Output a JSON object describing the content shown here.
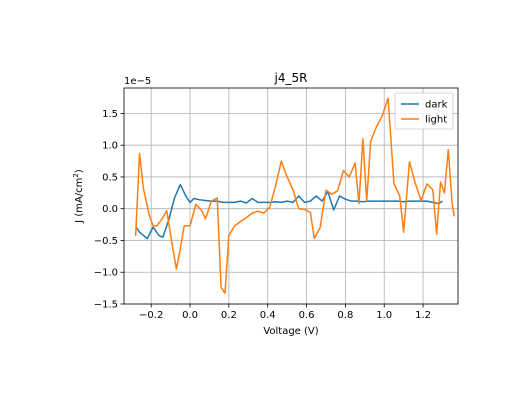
{
  "chart_data": {
    "type": "line",
    "title": "j4_5R",
    "xlabel": "Voltage (V)",
    "ylabel_main": "J (mA/cm",
    "ylabel_sup": "2",
    "ylabel_close": ")",
    "offset_text": "1e−5",
    "xlim": [
      -0.34,
      1.38
    ],
    "ylim": [
      -1.5,
      1.9
    ],
    "y_scale": "1e-5",
    "xticks": [
      -0.2,
      0.0,
      0.2,
      0.4,
      0.6,
      0.8,
      1.0,
      1.2
    ],
    "xtick_labels": [
      "−0.2",
      "0.0",
      "0.2",
      "0.4",
      "0.6",
      "0.8",
      "1.0",
      "1.2"
    ],
    "yticks": [
      -1.5,
      -1.0,
      -0.5,
      0.0,
      0.5,
      1.0,
      1.5
    ],
    "ytick_labels": [
      "−1.5",
      "−1.0",
      "−0.5",
      "0.0",
      "0.5",
      "1.0",
      "1.5"
    ],
    "grid": true,
    "legend_position": "top-right",
    "series": [
      {
        "name": "dark",
        "color": "#1f77b4",
        "points": [
          [
            -0.28,
            -0.28
          ],
          [
            -0.26,
            -0.37
          ],
          [
            -0.22,
            -0.47
          ],
          [
            -0.19,
            -0.29
          ],
          [
            -0.16,
            -0.42
          ],
          [
            -0.14,
            -0.45
          ],
          [
            -0.11,
            -0.18
          ],
          [
            -0.08,
            0.17
          ],
          [
            -0.05,
            0.38
          ],
          [
            -0.02,
            0.19
          ],
          [
            0.0,
            0.1
          ],
          [
            0.02,
            0.16
          ],
          [
            0.05,
            0.14
          ],
          [
            0.08,
            0.13
          ],
          [
            0.11,
            0.12
          ],
          [
            0.14,
            0.12
          ],
          [
            0.17,
            0.1
          ],
          [
            0.2,
            0.1
          ],
          [
            0.23,
            0.1
          ],
          [
            0.26,
            0.12
          ],
          [
            0.29,
            0.09
          ],
          [
            0.32,
            0.16
          ],
          [
            0.35,
            0.1
          ],
          [
            0.38,
            0.1
          ],
          [
            0.41,
            0.1
          ],
          [
            0.44,
            0.11
          ],
          [
            0.47,
            0.1
          ],
          [
            0.5,
            0.12
          ],
          [
            0.53,
            0.1
          ],
          [
            0.56,
            0.2
          ],
          [
            0.59,
            0.1
          ],
          [
            0.62,
            0.12
          ],
          [
            0.65,
            0.2
          ],
          [
            0.68,
            0.12
          ],
          [
            0.71,
            0.27
          ],
          [
            0.74,
            -0.02
          ],
          [
            0.77,
            0.2
          ],
          [
            0.8,
            0.15
          ],
          [
            0.83,
            0.12
          ],
          [
            0.86,
            0.12
          ],
          [
            0.89,
            0.11
          ],
          [
            0.92,
            0.12
          ],
          [
            0.95,
            0.12
          ],
          [
            0.98,
            0.12
          ],
          [
            1.01,
            0.12
          ],
          [
            1.04,
            0.12
          ],
          [
            1.07,
            0.12
          ],
          [
            1.1,
            0.11
          ],
          [
            1.13,
            0.12
          ],
          [
            1.16,
            0.12
          ],
          [
            1.19,
            0.12
          ],
          [
            1.22,
            0.12
          ],
          [
            1.25,
            0.1
          ],
          [
            1.28,
            0.08
          ],
          [
            1.3,
            0.12
          ]
        ]
      },
      {
        "name": "light",
        "color": "#ff7f0e",
        "points": [
          [
            -0.28,
            -0.43
          ],
          [
            -0.26,
            0.87
          ],
          [
            -0.24,
            0.32
          ],
          [
            -0.21,
            -0.1
          ],
          [
            -0.19,
            -0.27
          ],
          [
            -0.17,
            -0.27
          ],
          [
            -0.14,
            -0.14
          ],
          [
            -0.12,
            -0.03
          ],
          [
            -0.09,
            -0.6
          ],
          [
            -0.07,
            -0.95
          ],
          [
            -0.05,
            -0.63
          ],
          [
            -0.03,
            -0.27
          ],
          [
            0.0,
            -0.27
          ],
          [
            0.03,
            0.07
          ],
          [
            0.06,
            -0.03
          ],
          [
            0.08,
            -0.16
          ],
          [
            0.11,
            0.12
          ],
          [
            0.14,
            0.17
          ],
          [
            0.16,
            -1.24
          ],
          [
            0.18,
            -1.33
          ],
          [
            0.2,
            -0.42
          ],
          [
            0.23,
            -0.27
          ],
          [
            0.26,
            -0.2
          ],
          [
            0.29,
            -0.14
          ],
          [
            0.32,
            -0.07
          ],
          [
            0.35,
            -0.04
          ],
          [
            0.38,
            -0.07
          ],
          [
            0.41,
            0.02
          ],
          [
            0.44,
            0.35
          ],
          [
            0.47,
            0.75
          ],
          [
            0.5,
            0.5
          ],
          [
            0.53,
            0.3
          ],
          [
            0.56,
            0.0
          ],
          [
            0.59,
            -0.01
          ],
          [
            0.62,
            -0.06
          ],
          [
            0.64,
            -0.47
          ],
          [
            0.67,
            -0.3
          ],
          [
            0.7,
            0.29
          ],
          [
            0.73,
            0.23
          ],
          [
            0.76,
            0.28
          ],
          [
            0.79,
            0.6
          ],
          [
            0.82,
            0.5
          ],
          [
            0.85,
            0.72
          ],
          [
            0.87,
            0.08
          ],
          [
            0.89,
            1.1
          ],
          [
            0.91,
            0.12
          ],
          [
            0.93,
            1.06
          ],
          [
            0.96,
            1.29
          ],
          [
            0.99,
            1.46
          ],
          [
            1.02,
            1.74
          ],
          [
            1.05,
            0.4
          ],
          [
            1.08,
            0.2
          ],
          [
            1.1,
            -0.37
          ],
          [
            1.13,
            0.74
          ],
          [
            1.16,
            0.4
          ],
          [
            1.19,
            0.13
          ],
          [
            1.22,
            0.39
          ],
          [
            1.25,
            0.3
          ],
          [
            1.27,
            -0.4
          ],
          [
            1.29,
            0.42
          ],
          [
            1.31,
            0.25
          ],
          [
            1.33,
            0.93
          ],
          [
            1.35,
            0.08
          ],
          [
            1.36,
            -0.12
          ]
        ]
      }
    ]
  }
}
